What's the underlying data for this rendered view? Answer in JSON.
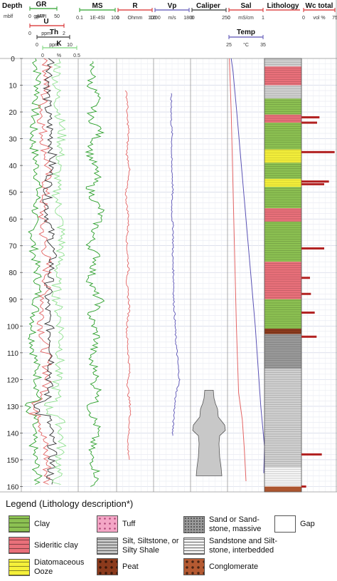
{
  "chart_data": {
    "type": "line",
    "title": "",
    "depth_axis": {
      "label": "Depth",
      "unit": "mblf",
      "ticks": [
        0,
        10,
        20,
        30,
        40,
        50,
        60,
        70,
        80,
        90,
        100,
        110,
        120,
        130,
        140,
        150,
        160
      ],
      "range": [
        0,
        162
      ]
    },
    "headers": [
      {
        "name": "GR",
        "unit": "gAPI",
        "min": "0",
        "max": "50",
        "color": "#2ca02c"
      },
      {
        "name": "U",
        "unit": "ppm",
        "min": "0",
        "max": "2",
        "color": "#d62728"
      },
      {
        "name": "Th",
        "unit": "ppm",
        "min": "0",
        "max": "10",
        "color": "#333333"
      },
      {
        "name": "K",
        "unit": "%",
        "min": "0",
        "max": "0.5",
        "color": "#7cd67c"
      },
      {
        "name": "MS",
        "unit": "1E-4SI",
        "min": "0.1",
        "max": "100",
        "color": "#2ca02c"
      },
      {
        "name": "R",
        "unit": "Ohmm",
        "min": "1",
        "max": "100",
        "color": "#d62728"
      },
      {
        "name": "Vp",
        "unit": "m/s",
        "min": "1200",
        "max": "1800",
        "color": "#5a52b5"
      },
      {
        "name": "Caliper",
        "unit": "",
        "min": "0",
        "max": "250",
        "color": "#333333"
      },
      {
        "name": "Sal",
        "unit": "mS/cm",
        "min": "0",
        "max": "1",
        "color": "#d62728"
      },
      {
        "name": "Temp",
        "unit": "°C",
        "min": "25",
        "max": "35",
        "color": "#5a52b5"
      },
      {
        "name": "Lithology",
        "unit": "",
        "min": "",
        "max": "",
        "color": "#d62728"
      },
      {
        "name": "Wc total",
        "unit": "vol %",
        "min": "0",
        "max": "75",
        "color": "#d62728"
      }
    ],
    "series": [
      {
        "name": "MS",
        "x_range": [
          1,
          160
        ],
        "values": [
          3,
          4,
          3,
          5,
          4,
          3,
          6,
          4,
          3,
          4,
          5,
          3,
          4,
          6,
          5,
          4,
          3,
          5,
          4,
          3,
          4,
          6,
          3,
          4,
          5,
          4,
          3,
          5,
          4,
          6,
          3,
          4,
          5,
          4,
          3,
          4,
          5,
          4
        ]
      },
      {
        "name": "R",
        "x_range": [
          12,
          150
        ],
        "values": [
          10,
          12,
          11,
          13,
          12,
          11,
          14,
          12,
          10,
          11,
          13,
          12,
          11,
          12,
          13,
          11,
          12,
          14,
          12,
          11,
          12,
          13,
          14,
          12,
          13,
          15,
          14,
          13,
          12,
          14
        ]
      },
      {
        "name": "Vp",
        "x_range": [
          13,
          141
        ],
        "values": [
          1480,
          1490,
          1485,
          1500,
          1495,
          1490,
          1505,
          1510,
          1495,
          1500,
          1520,
          1515,
          1510,
          1520,
          1530,
          1525,
          1540,
          1550,
          1560,
          1580,
          1600,
          1620,
          1560,
          1540,
          1520,
          1510
        ]
      },
      {
        "name": "Sal",
        "depth": [
          0,
          20,
          60,
          100,
          125,
          135,
          145,
          158
        ],
        "values": [
          0.05,
          0.1,
          0.17,
          0.24,
          0.3,
          0.4,
          0.45,
          0.5
        ]
      },
      {
        "name": "Temp",
        "depth": [
          0,
          5,
          20,
          60,
          100,
          130,
          145,
          155
        ],
        "values": [
          26,
          26.5,
          27.5,
          30,
          32.5,
          34,
          35,
          34.8
        ]
      }
    ],
    "wc_total": [
      {
        "depth": 22,
        "value": 38
      },
      {
        "depth": 24,
        "value": 33
      },
      {
        "depth": 35,
        "value": 70
      },
      {
        "depth": 46,
        "value": 58
      },
      {
        "depth": 47,
        "value": 48
      },
      {
        "depth": 71,
        "value": 48
      },
      {
        "depth": 82,
        "value": 18
      },
      {
        "depth": 88,
        "value": 20
      },
      {
        "depth": 95,
        "value": 28
      },
      {
        "depth": 104,
        "value": 32
      },
      {
        "depth": 148,
        "value": 43
      },
      {
        "depth": 160,
        "value": 10
      }
    ],
    "lithology": [
      {
        "top": 0,
        "base": 3,
        "type": "Silt, Siltstone, or Silty Shale"
      },
      {
        "top": 3,
        "base": 10,
        "type": "Sideritic clay"
      },
      {
        "top": 10,
        "base": 15,
        "type": "Silt, Siltstone, or Silty Shale"
      },
      {
        "top": 15,
        "base": 21,
        "type": "Clay"
      },
      {
        "top": 21,
        "base": 24,
        "type": "Sideritic clay"
      },
      {
        "top": 24,
        "base": 34,
        "type": "Clay"
      },
      {
        "top": 34,
        "base": 39,
        "type": "Diatomaceous Ooze"
      },
      {
        "top": 39,
        "base": 45,
        "type": "Clay"
      },
      {
        "top": 45,
        "base": 48,
        "type": "Diatomaceous Ooze"
      },
      {
        "top": 48,
        "base": 56,
        "type": "Clay"
      },
      {
        "top": 56,
        "base": 61,
        "type": "Sideritic clay"
      },
      {
        "top": 61,
        "base": 76,
        "type": "Clay"
      },
      {
        "top": 76,
        "base": 90,
        "type": "Sideritic clay"
      },
      {
        "top": 90,
        "base": 101,
        "type": "Clay"
      },
      {
        "top": 101,
        "base": 103,
        "type": "Peat"
      },
      {
        "top": 103,
        "base": 116,
        "type": "Sand or Sandstone, massive"
      },
      {
        "top": 116,
        "base": 153,
        "type": "Silt, Siltstone, or Silty Shale"
      },
      {
        "top": 153,
        "base": 160,
        "type": "Sandstone and Siltstone, interbedded"
      },
      {
        "top": 160,
        "base": 162,
        "type": "Conglomerate"
      }
    ]
  },
  "legend": {
    "title": "Legend (Lithology description*)",
    "items": [
      {
        "label": "Clay",
        "color": "#8cc152"
      },
      {
        "label": "Sideritic clay",
        "color": "#e9707a"
      },
      {
        "label": "Diatomaceous\nOoze",
        "color": "#f5f03a"
      },
      {
        "label": "Tuff",
        "color": "#f4a6c6"
      },
      {
        "label": "Silt, Siltstone, or\nSilty Shale",
        "color": "#c8c8c8"
      },
      {
        "label": "Peat",
        "color": "#8b3a1c"
      },
      {
        "label": "Sand or Sand-\nstone, massive",
        "color": "#9a9a9a"
      },
      {
        "label": "Sandstone and Silt-\nstone, interbedded",
        "color": "#f0f0f0"
      },
      {
        "label": "Conglomerate",
        "color": "#b55a32"
      },
      {
        "label": "Gap",
        "color": "#ffffff"
      }
    ]
  }
}
